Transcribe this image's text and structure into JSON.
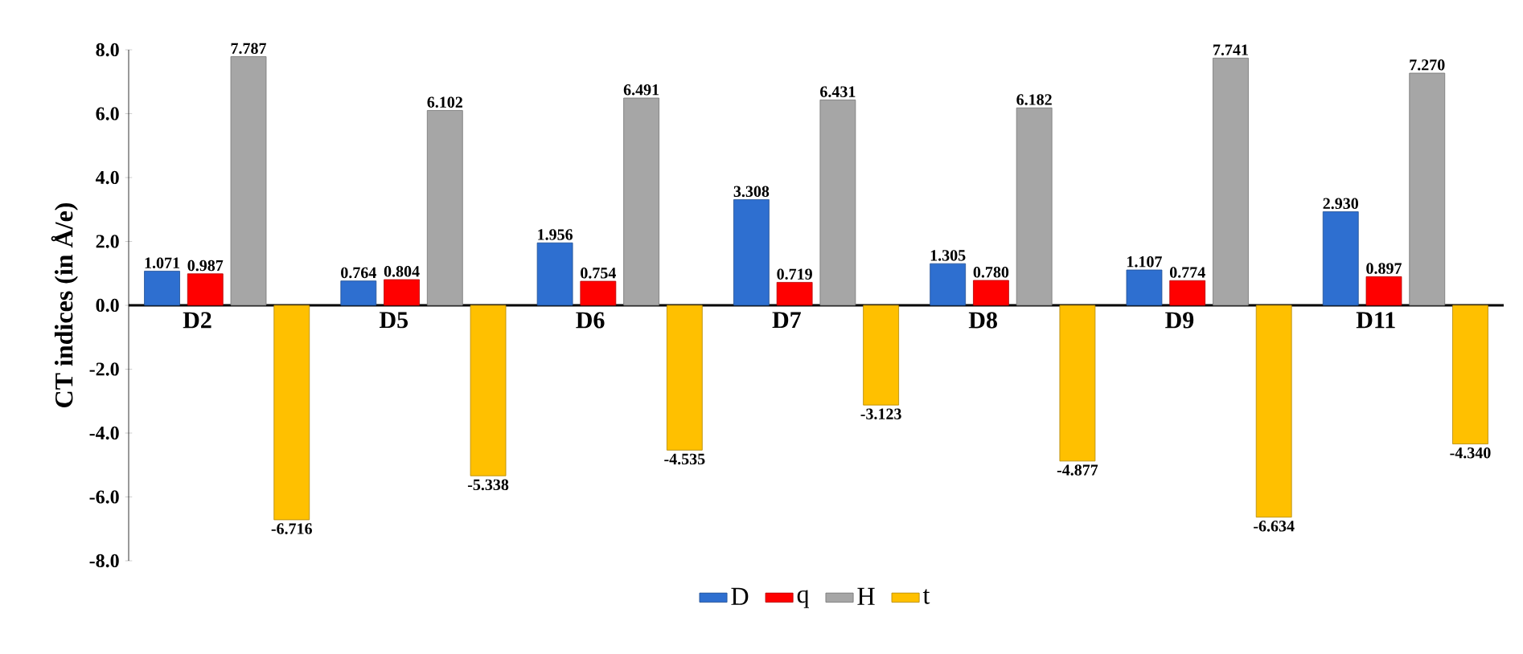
{
  "chart_data": {
    "type": "bar",
    "ylabel": "CT indices (in Å/e)",
    "categories": [
      "D2",
      "D5",
      "D6",
      "D7",
      "D8",
      "D9",
      "D11"
    ],
    "series": [
      {
        "name": "D",
        "color": "#2e6fd0",
        "values": [
          1.071,
          0.764,
          1.956,
          3.308,
          1.305,
          1.107,
          2.93
        ],
        "value_labels": [
          "1.071",
          "0.764",
          "1.956",
          "3.308",
          "1.305",
          "1.107",
          "2.930"
        ]
      },
      {
        "name": "q",
        "color": "#ff0000",
        "values": [
          0.987,
          0.804,
          0.754,
          0.719,
          0.78,
          0.774,
          0.897
        ],
        "value_labels": [
          "0.987",
          "0.804",
          "0.754",
          "0.719",
          "0.780",
          "0.774",
          "0.897"
        ]
      },
      {
        "name": "H",
        "color": "#a6a6a6",
        "values": [
          7.787,
          6.102,
          6.491,
          6.431,
          6.182,
          7.741,
          7.27
        ],
        "value_labels": [
          "7.787",
          "6.102",
          "6.491",
          "6.431",
          "6.182",
          "7.741",
          "7.270"
        ]
      },
      {
        "name": "t",
        "color": "#ffc000",
        "values": [
          -6.716,
          -5.338,
          -4.535,
          -3.123,
          -4.877,
          -6.634,
          -4.34
        ],
        "value_labels": [
          "-6.716",
          "-5.338",
          "-4.535",
          "-3.123",
          "-4.877",
          "-6.634",
          "-4.340"
        ]
      }
    ],
    "ylim": [
      -8,
      8
    ],
    "yticks": [
      {
        "value": -8,
        "label": "-8.0"
      },
      {
        "value": -6,
        "label": "-6.0"
      },
      {
        "value": -4,
        "label": "-4.0"
      },
      {
        "value": -2,
        "label": "-2.0"
      },
      {
        "value": 0,
        "label": "0.0"
      },
      {
        "value": 2,
        "label": "2.0"
      },
      {
        "value": 4,
        "label": "4.0"
      },
      {
        "value": 6,
        "label": "6.0"
      },
      {
        "value": 8,
        "label": "8.0"
      }
    ],
    "legend": "bottom"
  }
}
